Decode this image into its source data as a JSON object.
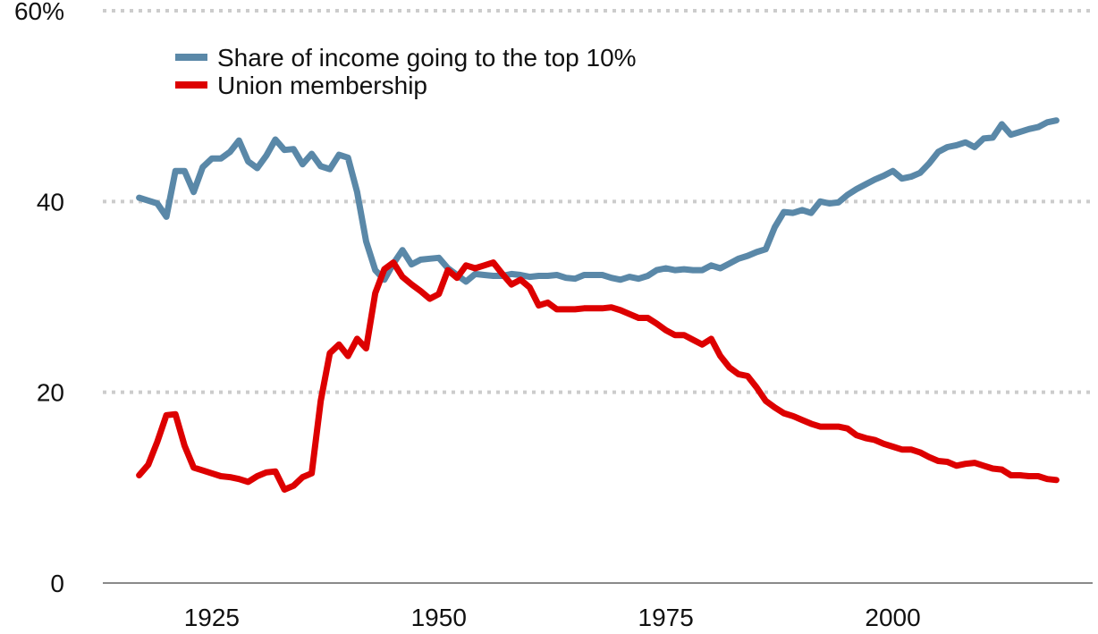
{
  "chart_data": {
    "type": "line",
    "ylim": [
      0,
      60
    ],
    "xlim": [
      1913,
      2022
    ],
    "y_ticks": [
      {
        "value": 0,
        "label": "0"
      },
      {
        "value": 20,
        "label": "20"
      },
      {
        "value": 40,
        "label": "40"
      },
      {
        "value": 60,
        "label": "60%"
      }
    ],
    "x_ticks": [
      {
        "value": 1925,
        "label": "1925"
      },
      {
        "value": 1950,
        "label": "1950"
      },
      {
        "value": 1975,
        "label": "1975"
      },
      {
        "value": 2000,
        "label": "2000"
      }
    ],
    "grid": "horizontal dotted",
    "legend_position": "top-left",
    "series": [
      {
        "name": "Share of income going to the top 10%",
        "color": "#5a88a8",
        "x": [
          1917,
          1918,
          1919,
          1920,
          1921,
          1922,
          1923,
          1924,
          1925,
          1926,
          1927,
          1928,
          1929,
          1930,
          1931,
          1932,
          1933,
          1934,
          1935,
          1936,
          1937,
          1938,
          1939,
          1940,
          1941,
          1942,
          1943,
          1944,
          1945,
          1946,
          1947,
          1948,
          1949,
          1950,
          1951,
          1952,
          1953,
          1954,
          1955,
          1956,
          1957,
          1958,
          1959,
          1960,
          1961,
          1962,
          1963,
          1964,
          1965,
          1966,
          1967,
          1968,
          1969,
          1970,
          1971,
          1972,
          1973,
          1974,
          1975,
          1976,
          1977,
          1978,
          1979,
          1980,
          1981,
          1982,
          1983,
          1984,
          1985,
          1986,
          1987,
          1988,
          1989,
          1990,
          1991,
          1992,
          1993,
          1994,
          1995,
          1996,
          1997,
          1998,
          1999,
          2000,
          2001,
          2002,
          2003,
          2004,
          2005,
          2006,
          2007,
          2008,
          2009,
          2010,
          2011,
          2012,
          2013,
          2014,
          2015,
          2016,
          2017,
          2018
        ],
        "values": [
          40.4,
          40.1,
          39.8,
          38.4,
          43.2,
          43.2,
          41.0,
          43.6,
          44.5,
          44.5,
          45.2,
          46.4,
          44.2,
          43.5,
          44.8,
          46.5,
          45.4,
          45.5,
          43.9,
          45.0,
          43.7,
          43.4,
          44.9,
          44.6,
          41.0,
          35.8,
          32.8,
          31.8,
          33.5,
          34.9,
          33.4,
          33.9,
          34.0,
          34.1,
          33.0,
          32.3,
          31.6,
          32.4,
          32.3,
          32.2,
          32.2,
          32.4,
          32.3,
          32.1,
          32.2,
          32.2,
          32.3,
          32.0,
          31.9,
          32.3,
          32.3,
          32.3,
          32.0,
          31.8,
          32.1,
          31.9,
          32.2,
          32.8,
          33.0,
          32.8,
          32.9,
          32.8,
          32.8,
          33.3,
          33.0,
          33.5,
          34.0,
          34.3,
          34.7,
          35.0,
          37.3,
          38.9,
          38.8,
          39.1,
          38.8,
          40.0,
          39.8,
          39.9,
          40.7,
          41.3,
          41.8,
          42.3,
          42.7,
          43.2,
          42.4,
          42.6,
          43.0,
          44.0,
          45.2,
          45.7,
          45.9,
          46.2,
          45.7,
          46.6,
          46.7,
          48.1,
          47.0,
          47.3,
          47.6,
          47.8,
          48.3,
          48.5
        ]
      },
      {
        "name": "Union membership",
        "color": "#dd0000",
        "x": [
          1917,
          1918,
          1919,
          1920,
          1921,
          1922,
          1923,
          1924,
          1925,
          1926,
          1927,
          1928,
          1929,
          1930,
          1931,
          1932,
          1933,
          1934,
          1935,
          1936,
          1937,
          1938,
          1939,
          1940,
          1941,
          1942,
          1943,
          1944,
          1945,
          1946,
          1947,
          1948,
          1949,
          1950,
          1951,
          1952,
          1953,
          1954,
          1955,
          1956,
          1957,
          1958,
          1959,
          1960,
          1961,
          1962,
          1963,
          1964,
          1965,
          1966,
          1967,
          1968,
          1969,
          1970,
          1971,
          1972,
          1973,
          1974,
          1975,
          1976,
          1977,
          1978,
          1979,
          1980,
          1981,
          1982,
          1983,
          1984,
          1985,
          1986,
          1987,
          1988,
          1989,
          1990,
          1991,
          1992,
          1993,
          1994,
          1995,
          1996,
          1997,
          1998,
          1999,
          2000,
          2001,
          2002,
          2003,
          2004,
          2005,
          2006,
          2007,
          2008,
          2009,
          2010,
          2011,
          2012,
          2013,
          2014,
          2015,
          2016,
          2017,
          2018
        ],
        "values": [
          11.3,
          12.4,
          14.8,
          17.6,
          17.7,
          14.4,
          12.1,
          11.8,
          11.5,
          11.2,
          11.1,
          10.9,
          10.6,
          11.2,
          11.6,
          11.7,
          9.8,
          10.2,
          11.1,
          11.5,
          19.1,
          24.1,
          25.0,
          23.8,
          25.6,
          24.6,
          30.4,
          32.9,
          33.6,
          32.1,
          31.3,
          30.6,
          29.8,
          30.3,
          32.8,
          32.0,
          33.3,
          33.0,
          33.3,
          33.6,
          32.4,
          31.3,
          31.8,
          31.0,
          29.1,
          29.4,
          28.7,
          28.7,
          28.7,
          28.8,
          28.8,
          28.8,
          28.9,
          28.6,
          28.2,
          27.8,
          27.8,
          27.2,
          26.5,
          26.0,
          26.0,
          25.5,
          25.0,
          25.6,
          23.8,
          22.6,
          21.9,
          21.7,
          20.5,
          19.1,
          18.4,
          17.8,
          17.5,
          17.1,
          16.7,
          16.4,
          16.4,
          16.4,
          16.2,
          15.5,
          15.2,
          15.0,
          14.6,
          14.3,
          14.0,
          14.0,
          13.7,
          13.2,
          12.8,
          12.7,
          12.3,
          12.5,
          12.6,
          12.3,
          12.0,
          11.9,
          11.3,
          11.3,
          11.2,
          11.2,
          10.9,
          10.8
        ]
      }
    ]
  }
}
